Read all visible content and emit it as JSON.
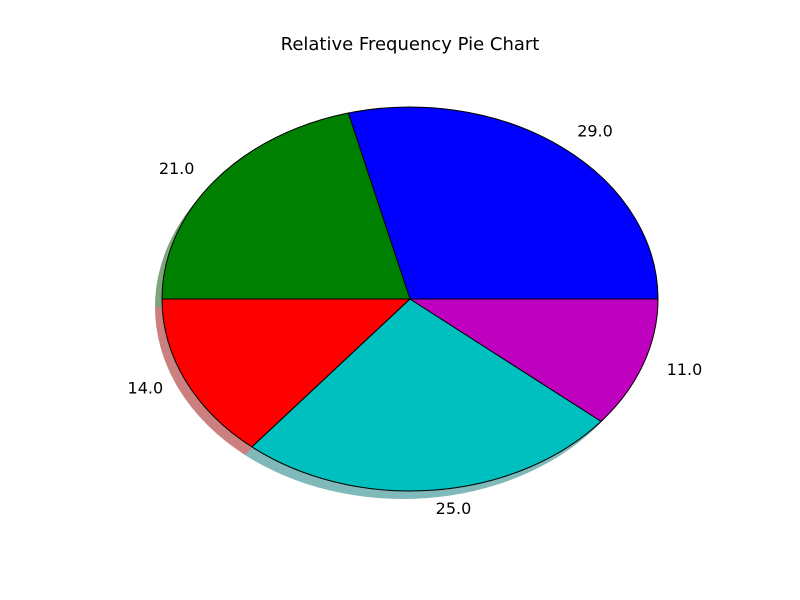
{
  "chart_data": {
    "type": "pie",
    "title": "Relative Frequency Pie Chart",
    "slices": [
      {
        "value": 29.0,
        "label": "29.0",
        "color": "#0000ff"
      },
      {
        "value": 21.0,
        "label": "21.0",
        "color": "#008000"
      },
      {
        "value": 14.0,
        "label": "14.0",
        "color": "#ff0000"
      },
      {
        "value": 25.0,
        "label": "25.0",
        "color": "#00bfbf"
      },
      {
        "value": 11.0,
        "label": "11.0",
        "color": "#bf00bf"
      }
    ],
    "start_angle_deg": 0,
    "direction": "counterclockwise",
    "shadow": true,
    "edge_color": "#000000"
  }
}
